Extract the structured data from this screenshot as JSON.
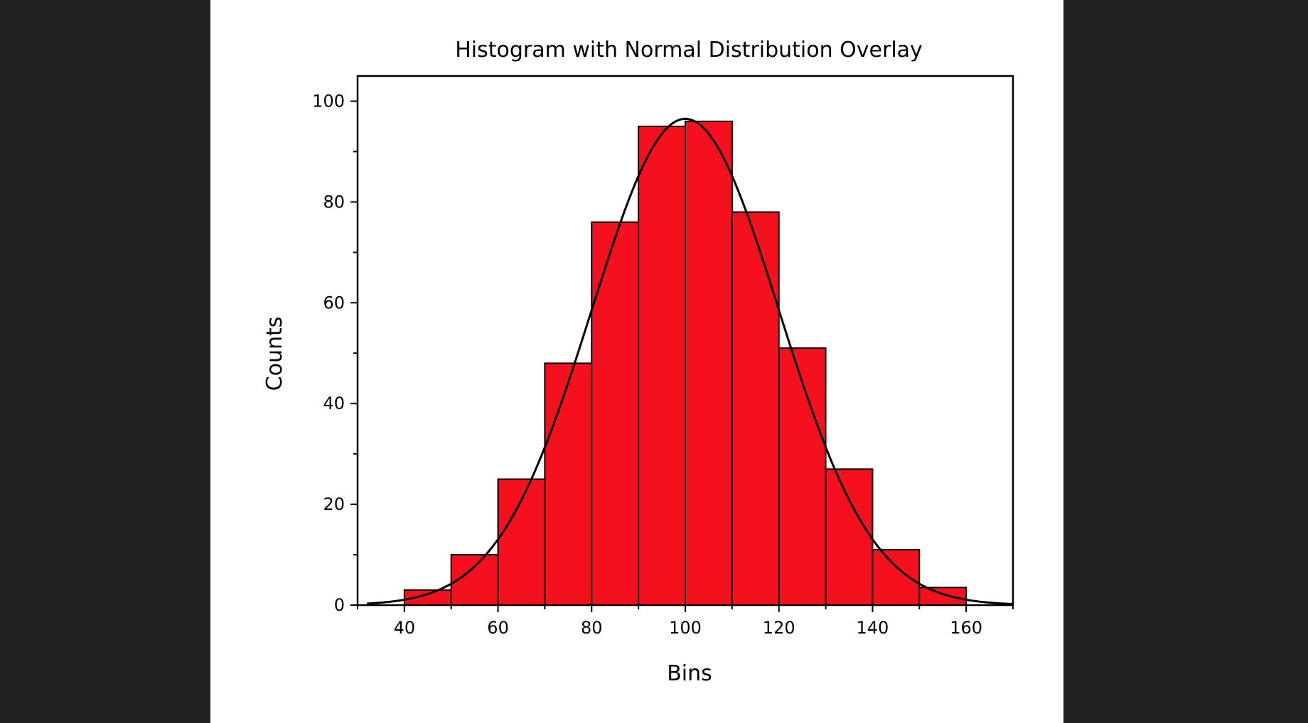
{
  "chart_data": {
    "type": "bar",
    "title": "Histogram with Normal Distribution Overlay",
    "xlabel": "Bins",
    "ylabel": "Counts",
    "xlim": [
      30,
      170
    ],
    "ylim": [
      0,
      105
    ],
    "x_ticks": [
      40,
      60,
      80,
      100,
      120,
      140,
      160
    ],
    "y_ticks": [
      0,
      20,
      40,
      60,
      80,
      100
    ],
    "grid": false,
    "bins": [
      {
        "start": 40,
        "end": 50,
        "count": 3
      },
      {
        "start": 50,
        "end": 60,
        "count": 10
      },
      {
        "start": 60,
        "end": 70,
        "count": 25
      },
      {
        "start": 70,
        "end": 80,
        "count": 48
      },
      {
        "start": 80,
        "end": 90,
        "count": 76
      },
      {
        "start": 90,
        "end": 100,
        "count": 95
      },
      {
        "start": 100,
        "end": 110,
        "count": 96
      },
      {
        "start": 110,
        "end": 120,
        "count": 78
      },
      {
        "start": 120,
        "end": 130,
        "count": 51
      },
      {
        "start": 130,
        "end": 140,
        "count": 27
      },
      {
        "start": 140,
        "end": 150,
        "count": 11
      },
      {
        "start": 150,
        "end": 160,
        "count": 3.5
      }
    ],
    "overlay": {
      "type": "normal",
      "mean": 100,
      "sd": 20,
      "peak": 96.5,
      "color": "#000000"
    },
    "bar_color": "#f5101e",
    "bar_edge_color": "#000000"
  }
}
